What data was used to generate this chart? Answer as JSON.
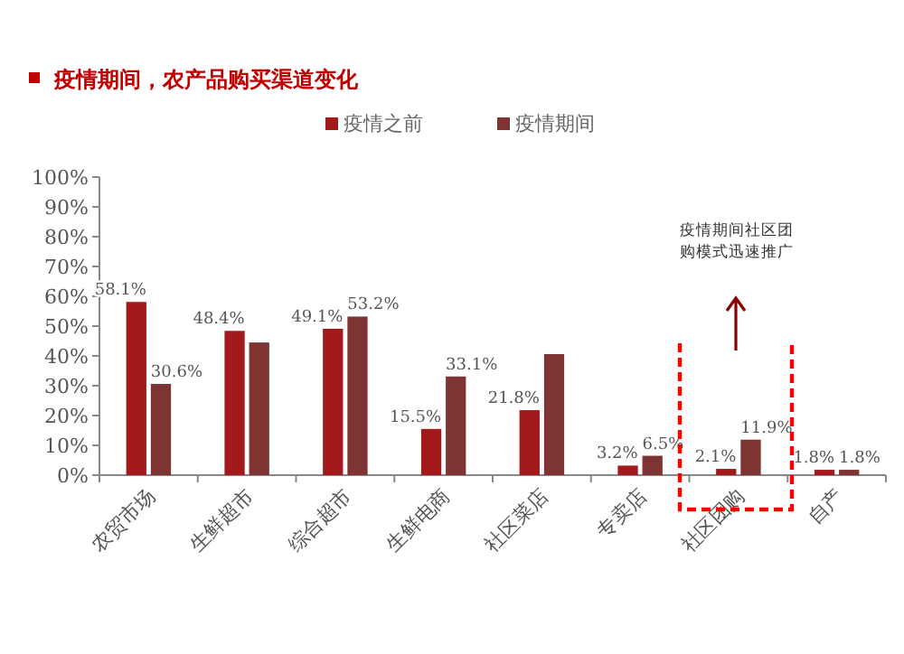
{
  "chart_data": {
    "type": "bar",
    "title": "疫情期间，农产品购买渠道变化",
    "categories": [
      "农贸市场",
      "生鲜超市",
      "综合超市",
      "生鲜电商",
      "社区菜店",
      "专卖店",
      "社区团购",
      "自产"
    ],
    "series": [
      {
        "name": "疫情之前",
        "color": "#a31a1c",
        "values": [
          58.1,
          48.4,
          49.1,
          15.5,
          21.8,
          3.2,
          2.1,
          1.8
        ],
        "value_labels": [
          "58.1%",
          "48.4%",
          "49.1%",
          "15.5%",
          "21.8%",
          "3.2%",
          "2.1%",
          "1.8%"
        ]
      },
      {
        "name": "疫情期间",
        "color": "#7f3434",
        "values": [
          30.6,
          44.5,
          53.2,
          33.1,
          40.6,
          6.5,
          11.9,
          1.8
        ],
        "value_labels": [
          "30.6%",
          null,
          "53.2%",
          "33.1%",
          null,
          "6.5%",
          "11.9%",
          "1.8%"
        ]
      }
    ],
    "ylim": [
      0,
      100
    ],
    "yticks": [
      {
        "value": 0,
        "label": "0%"
      },
      {
        "value": 10,
        "label": "10%"
      },
      {
        "value": 20,
        "label": "20%"
      },
      {
        "value": 30,
        "label": "30%"
      },
      {
        "value": 40,
        "label": "40%"
      },
      {
        "value": 50,
        "label": "50%"
      },
      {
        "value": 60,
        "label": "60%"
      },
      {
        "value": 70,
        "label": "70%"
      },
      {
        "value": 80,
        "label": "80%"
      },
      {
        "value": 90,
        "label": "90%"
      },
      {
        "value": 100,
        "label": "100%"
      }
    ],
    "legend": "top",
    "annotations": [
      "疫情期间社区团购模式迅速推广"
    ]
  }
}
